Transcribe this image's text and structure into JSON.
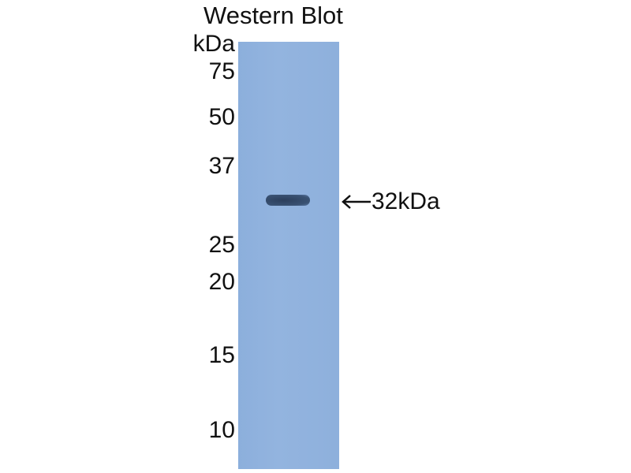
{
  "title": "Western Blot",
  "unit_label": "kDa",
  "markers": [
    "75",
    "50",
    "37",
    "25",
    "20",
    "15",
    "10"
  ],
  "band_label": "32kDa",
  "colors": {
    "membrane": "#8fb0dc",
    "band": "#34486a"
  }
}
